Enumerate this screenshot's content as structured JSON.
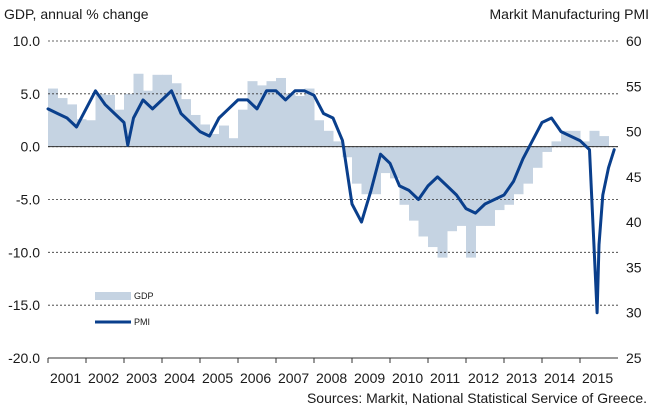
{
  "header": {
    "left_title": "GDP, annual % change",
    "right_title": "Markit Manufacturing PMI"
  },
  "footer": {
    "source": "Sources: Markit, National Statistical Service of Greece."
  },
  "colors": {
    "gdp": "#c5d3e2",
    "pmi": "#0a3f8c",
    "grid": "#333333"
  },
  "chart_data": {
    "type": "bar",
    "grid": "horizontal dashed",
    "legend_position": "bottom-left",
    "left_axis": {
      "title": "GDP, annual % change",
      "ylim": [
        -20,
        10
      ],
      "ticks": [
        "10.0",
        "5.0",
        "0.0",
        "-5.0",
        "-10.0",
        "-15.0",
        "-20.0"
      ]
    },
    "right_axis": {
      "title": "Markit Manufacturing PMI",
      "ylim": [
        25,
        60
      ],
      "ticks": [
        "60",
        "55",
        "50",
        "45",
        "40",
        "35",
        "30",
        "25"
      ]
    },
    "x_axis": {
      "range": [
        2001.0,
        2016.0
      ],
      "ticks": [
        "2001",
        "2002",
        "2003",
        "2004",
        "2005",
        "2006",
        "2007",
        "2008",
        "2009",
        "2010",
        "2011",
        "2012",
        "2013",
        "2014",
        "2015"
      ]
    },
    "series": [
      {
        "name": "GDP",
        "type": "bar",
        "axis": "left",
        "x": [
          2001.0,
          2001.25,
          2001.5,
          2001.75,
          2002.0,
          2002.25,
          2002.5,
          2002.75,
          2003.0,
          2003.25,
          2003.5,
          2003.75,
          2004.0,
          2004.25,
          2004.5,
          2004.75,
          2005.0,
          2005.25,
          2005.5,
          2005.75,
          2006.0,
          2006.25,
          2006.5,
          2006.75,
          2007.0,
          2007.25,
          2007.5,
          2007.75,
          2008.0,
          2008.25,
          2008.5,
          2008.75,
          2009.0,
          2009.25,
          2009.5,
          2009.75,
          2010.0,
          2010.25,
          2010.5,
          2010.75,
          2011.0,
          2011.25,
          2011.5,
          2011.75,
          2012.0,
          2012.25,
          2012.5,
          2012.75,
          2013.0,
          2013.25,
          2013.5,
          2013.75,
          2014.0,
          2014.25,
          2014.5,
          2014.75,
          2015.0,
          2015.25,
          2015.5
        ],
        "values": [
          5.5,
          4.6,
          4.0,
          2.6,
          2.5,
          5.0,
          4.9,
          3.5,
          5.0,
          6.9,
          5.3,
          6.8,
          6.8,
          6.0,
          4.5,
          3.0,
          2.1,
          1.2,
          2.0,
          0.8,
          3.5,
          6.2,
          5.8,
          6.2,
          6.5,
          5.0,
          4.8,
          5.5,
          2.5,
          1.5,
          0.5,
          -1.0,
          -3.5,
          -4.5,
          -4.5,
          -2.5,
          -3.0,
          -5.5,
          -7.0,
          -8.5,
          -9.5,
          -10.5,
          -8.0,
          -7.5,
          -10.5,
          -7.5,
          -7.5,
          -6.0,
          -5.5,
          -4.5,
          -3.5,
          -2.0,
          -0.5,
          0.5,
          1.5,
          1.5,
          0.5,
          1.5,
          1.0
        ]
      },
      {
        "name": "PMI",
        "type": "line",
        "axis": "right",
        "x": [
          2001.0,
          2001.25,
          2001.5,
          2001.75,
          2002.0,
          2002.25,
          2002.5,
          2002.75,
          2003.0,
          2003.1,
          2003.25,
          2003.5,
          2003.75,
          2004.0,
          2004.25,
          2004.5,
          2004.75,
          2005.0,
          2005.25,
          2005.5,
          2005.75,
          2006.0,
          2006.25,
          2006.5,
          2006.75,
          2007.0,
          2007.25,
          2007.5,
          2007.75,
          2008.0,
          2008.25,
          2008.5,
          2008.75,
          2009.0,
          2009.25,
          2009.5,
          2009.75,
          2010.0,
          2010.25,
          2010.5,
          2010.75,
          2011.0,
          2011.25,
          2011.5,
          2011.75,
          2012.0,
          2012.25,
          2012.5,
          2012.75,
          2013.0,
          2013.25,
          2013.5,
          2013.75,
          2014.0,
          2014.25,
          2014.5,
          2014.75,
          2015.0,
          2015.25,
          2015.45,
          2015.5,
          2015.6,
          2015.75,
          2015.9
        ],
        "values": [
          52.5,
          52.0,
          51.5,
          50.5,
          52.5,
          54.5,
          53.0,
          52.0,
          51.0,
          48.5,
          51.5,
          53.5,
          52.5,
          53.5,
          54.5,
          52.0,
          51.0,
          50.0,
          49.5,
          51.5,
          52.5,
          53.5,
          53.5,
          52.5,
          54.5,
          54.5,
          53.5,
          54.5,
          54.5,
          54.0,
          52.0,
          51.5,
          49.0,
          42.0,
          40.0,
          43.5,
          47.5,
          46.5,
          44.0,
          43.5,
          42.5,
          44.0,
          45.0,
          44.0,
          43.0,
          41.5,
          41.0,
          42.0,
          42.5,
          43.0,
          44.5,
          47.0,
          49.0,
          51.0,
          51.5,
          50.0,
          49.5,
          49.0,
          48.0,
          30.0,
          37.5,
          43.0,
          46.0,
          48.0
        ]
      }
    ],
    "legend": [
      "GDP",
      "PMI"
    ]
  }
}
